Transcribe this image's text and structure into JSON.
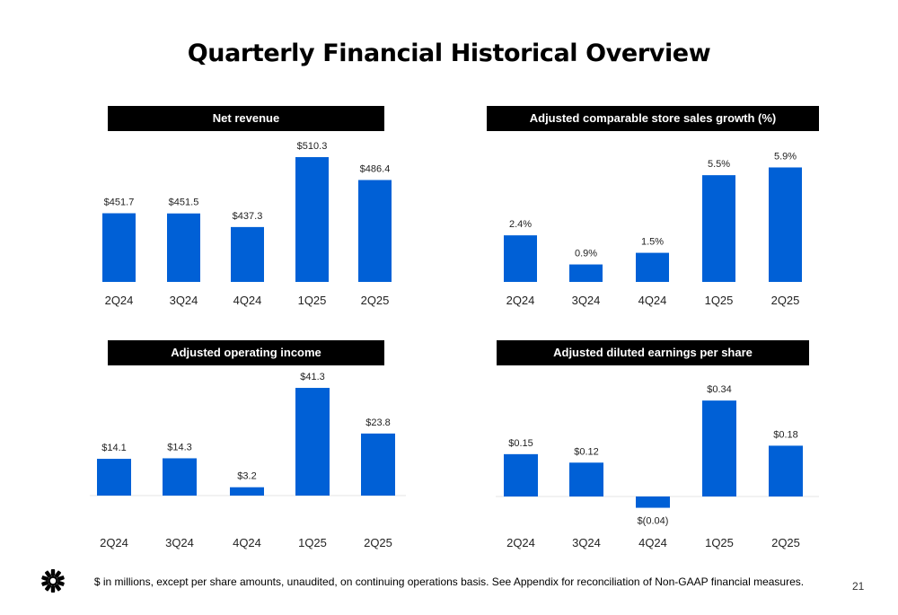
{
  "title": "Quarterly Financial Historical Overview",
  "footnote": "$ in millions, except per share amounts, unaudited, on continuing operations basis. See Appendix for reconciliation of Non-GAAP financial measures.",
  "page_number": "21",
  "colors": {
    "bar": "#0060d6",
    "header_bg": "#000000",
    "header_text": "#ffffff"
  },
  "logo_icon": "starburst-logo-icon",
  "chart_data": [
    {
      "type": "bar",
      "title": "Net revenue",
      "categories": [
        "2Q24",
        "3Q24",
        "4Q24",
        "1Q25",
        "2Q25"
      ],
      "values": [
        451.7,
        451.5,
        437.3,
        510.3,
        486.4
      ],
      "labels": [
        "$451.7",
        "$451.5",
        "$437.3",
        "$510.3",
        "$486.4"
      ],
      "ylim": [
        380,
        515
      ]
    },
    {
      "type": "bar",
      "title": "Adjusted comparable store sales growth (%)",
      "categories": [
        "2Q24",
        "3Q24",
        "4Q24",
        "1Q25",
        "2Q25"
      ],
      "values": [
        2.4,
        0.9,
        1.5,
        5.5,
        5.9
      ],
      "labels": [
        "2.4%",
        "0.9%",
        "1.5%",
        "5.5%",
        "5.9%"
      ],
      "ylim": [
        0,
        6.2
      ]
    },
    {
      "type": "bar",
      "title": "Adjusted operating income",
      "categories": [
        "2Q24",
        "3Q24",
        "4Q24",
        "1Q25",
        "2Q25"
      ],
      "values": [
        14.1,
        14.3,
        3.2,
        41.3,
        23.8
      ],
      "labels": [
        "$14.1",
        "$14.3",
        "$3.2",
        "$41.3",
        "$23.8"
      ],
      "ylim": [
        0,
        42
      ]
    },
    {
      "type": "bar",
      "title": "Adjusted diluted earnings per share",
      "categories": [
        "2Q24",
        "3Q24",
        "4Q24",
        "1Q25",
        "2Q25"
      ],
      "values": [
        0.15,
        0.12,
        -0.04,
        0.34,
        0.18
      ],
      "labels": [
        "$0.15",
        "$0.12",
        "$(0.04)",
        "$0.34",
        "$0.18"
      ],
      "ylim": [
        -0.04,
        0.35
      ]
    }
  ]
}
